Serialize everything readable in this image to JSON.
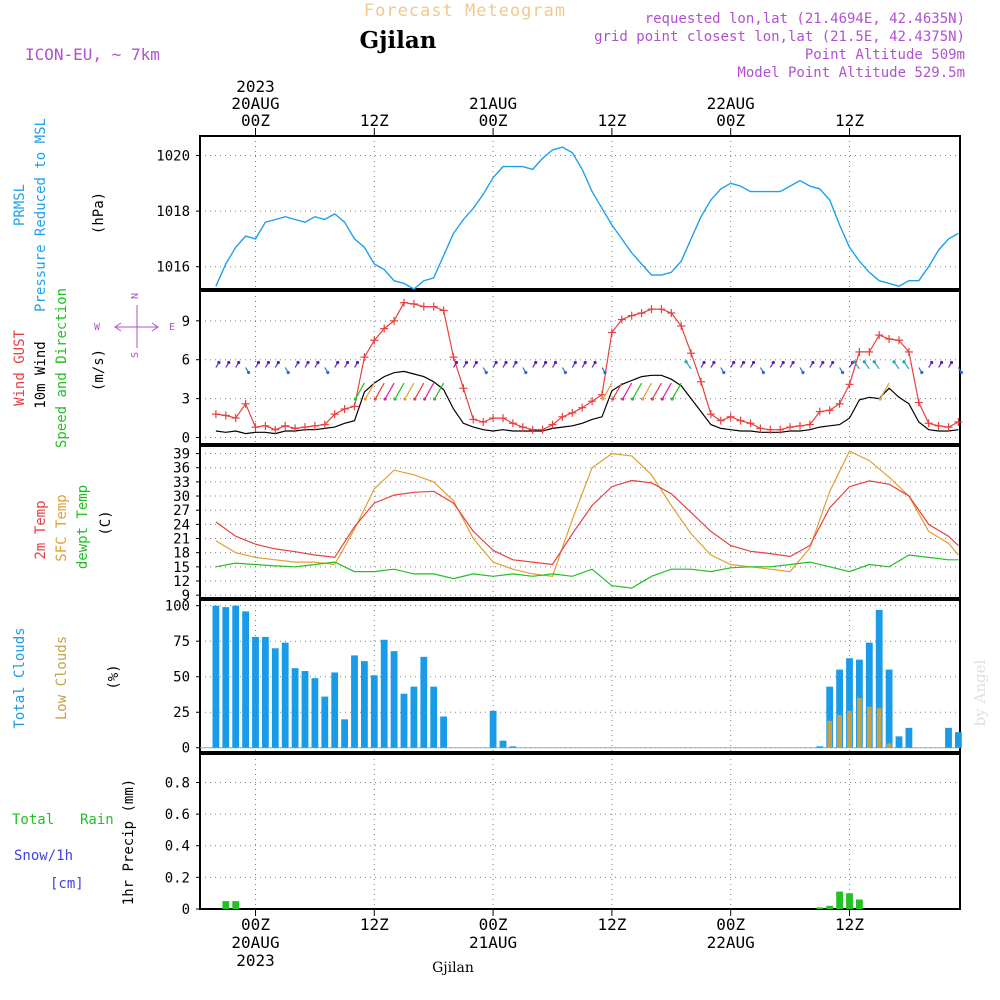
{
  "header": {
    "product_title": "Forecast Meteogram",
    "location": "Gjilan",
    "model": "ICON-EU, ~ 7km",
    "requested": "requested lon,lat (21.4694E, 42.4635N)",
    "gridpoint": "grid point closest lon,lat (21.5E, 42.4375N)",
    "point_alt": "Point Altitude 509m",
    "model_alt": "Model Point Altitude 529.5m",
    "footer_location": "Gjilan",
    "credit": "by Angel"
  },
  "colors": {
    "pressure": "#1ea0f0",
    "gust": "#e84040",
    "wind": "#000000",
    "winddir": "#22c022",
    "temp2m": "#e84040",
    "sfctemp": "#e0a030",
    "dewpt": "#22c022",
    "totalcloud": "#1a9be8",
    "lowcloud": "#c8a048",
    "rain": "#22c022",
    "snow": "#4040e0",
    "purple": "#b050d0",
    "grid": "#808080"
  },
  "time_axis": {
    "top_labels": [
      {
        "hour": 0,
        "lines": [
          "2023",
          "20AUG",
          "00Z"
        ]
      },
      {
        "hour": 12,
        "lines": [
          "12Z"
        ]
      },
      {
        "hour": 24,
        "lines": [
          "21AUG",
          "00Z"
        ]
      },
      {
        "hour": 36,
        "lines": [
          "12Z"
        ]
      },
      {
        "hour": 48,
        "lines": [
          "22AUG",
          "00Z"
        ]
      },
      {
        "hour": 60,
        "lines": [
          "12Z"
        ]
      }
    ],
    "bottom_labels": [
      {
        "hour": 0,
        "lines": [
          "00Z",
          "20AUG",
          "2023"
        ]
      },
      {
        "hour": 12,
        "lines": [
          "12Z"
        ]
      },
      {
        "hour": 24,
        "lines": [
          "00Z",
          "21AUG"
        ]
      },
      {
        "hour": 36,
        "lines": [
          "12Z"
        ]
      },
      {
        "hour": 48,
        "lines": [
          "00Z",
          "22AUG"
        ]
      },
      {
        "hour": 60,
        "lines": [
          "12Z"
        ]
      }
    ]
  },
  "panels": {
    "pressure": {
      "labels": [
        "PRMSL",
        "Pressure Reduced to MSL"
      ],
      "unit": "(hPa)",
      "ticks": [
        "1016",
        "1018",
        "1020"
      ]
    },
    "wind": {
      "labels": [
        "Wind GUST",
        "10m Wind",
        "Speed and Direction"
      ],
      "unit": "(m/s)",
      "ticks": [
        "0",
        "3",
        "6",
        "9"
      ],
      "compass": {
        "n": "N",
        "s": "S",
        "w": "W",
        "e": "E"
      }
    },
    "temp": {
      "labels": [
        "2m Temp",
        "SFC Temp",
        "dewpt Temp"
      ],
      "unit": "(C)",
      "ticks": [
        "9",
        "12",
        "15",
        "18",
        "21",
        "24",
        "27",
        "30",
        "33",
        "36",
        "39"
      ]
    },
    "clouds": {
      "labels": [
        "Total Clouds",
        "Low Clouds"
      ],
      "unit": "(%)",
      "ticks": [
        "0",
        "25",
        "50",
        "75",
        "100"
      ]
    },
    "precip": {
      "labels": [
        "Total",
        "Rain",
        "Snow/1h",
        "[cm]"
      ],
      "unit": "1hr Precip (mm)",
      "ticks": [
        "0",
        "0.2",
        "0.4",
        "0.6",
        "0.8"
      ]
    }
  },
  "chart_data": [
    {
      "type": "line",
      "name": "pressure",
      "ylabel": "PRMSL Pressure Reduced to MSL (hPa)",
      "ylim": [
        1015.2,
        1020.7
      ],
      "x": [
        -4,
        -3,
        -2,
        -1,
        0,
        1,
        2,
        3,
        4,
        5,
        6,
        7,
        8,
        9,
        10,
        11,
        12,
        13,
        14,
        15,
        16,
        17,
        18,
        19,
        20,
        21,
        22,
        23,
        24,
        25,
        26,
        27,
        28,
        29,
        30,
        31,
        32,
        33,
        34,
        35,
        36,
        37,
        38,
        39,
        40,
        41,
        42,
        43,
        44,
        45,
        46,
        47,
        48,
        49,
        50,
        51,
        52,
        53,
        54,
        55,
        56,
        57,
        58,
        59,
        60,
        61,
        62,
        63,
        64,
        65,
        66,
        67,
        68,
        69,
        70,
        71
      ],
      "series": [
        {
          "values": [
            1015.3,
            1016.1,
            1016.7,
            1017.1,
            1017.0,
            1017.6,
            1017.7,
            1017.8,
            1017.7,
            1017.6,
            1017.8,
            1017.7,
            1017.9,
            1017.6,
            1017.0,
            1016.7,
            1016.1,
            1015.9,
            1015.5,
            1015.4,
            1015.2,
            1015.5,
            1015.6,
            1016.4,
            1017.2,
            1017.7,
            1018.1,
            1018.6,
            1019.2,
            1019.6,
            1019.6,
            1019.6,
            1019.5,
            1019.9,
            1020.2,
            1020.3,
            1020.1,
            1019.5,
            1018.7,
            1018.1,
            1017.5,
            1017.0,
            1016.5,
            1016.1,
            1015.7,
            1015.7,
            1015.8,
            1016.2,
            1017.0,
            1017.8,
            1018.4,
            1018.8,
            1019.0,
            1018.9,
            1018.7,
            1018.7,
            1018.7,
            1018.7,
            1018.9,
            1019.1,
            1018.9,
            1018.8,
            1018.4,
            1017.5,
            1016.7,
            1016.2,
            1015.8,
            1015.5,
            1015.4,
            1015.3,
            1015.5,
            1015.5,
            1016.0,
            1016.6,
            1017.0,
            1017.2
          ]
        }
      ]
    },
    {
      "type": "line",
      "name": "wind",
      "ylabel": "(m/s)",
      "ylim": [
        -0.5,
        11.3
      ],
      "x": [
        -4,
        -3,
        -2,
        -1,
        0,
        1,
        2,
        3,
        4,
        5,
        6,
        7,
        8,
        9,
        10,
        11,
        12,
        13,
        14,
        15,
        16,
        17,
        18,
        19,
        20,
        21,
        22,
        23,
        24,
        25,
        26,
        27,
        28,
        29,
        30,
        31,
        32,
        33,
        34,
        35,
        36,
        37,
        38,
        39,
        40,
        41,
        42,
        43,
        44,
        45,
        46,
        47,
        48,
        49,
        50,
        51,
        52,
        53,
        54,
        55,
        56,
        57,
        58,
        59,
        60,
        61,
        62,
        63,
        64,
        65,
        66,
        67,
        68,
        69,
        70,
        71
      ],
      "series": [
        {
          "name": "Wind GUST",
          "values": [
            1.8,
            1.7,
            1.5,
            2.6,
            0.8,
            0.9,
            0.6,
            0.9,
            0.7,
            0.8,
            0.9,
            1.0,
            1.8,
            2.2,
            2.4,
            6.2,
            7.5,
            8.4,
            9.0,
            10.4,
            10.3,
            10.1,
            10.1,
            9.8,
            6.2,
            3.8,
            1.4,
            1.2,
            1.5,
            1.5,
            1.1,
            0.8,
            0.6,
            0.6,
            1.0,
            1.6,
            1.9,
            2.3,
            2.8,
            3.3,
            8.1,
            9.1,
            9.4,
            9.6,
            9.9,
            9.9,
            9.6,
            8.6,
            6.5,
            4.3,
            1.8,
            1.3,
            1.6,
            1.3,
            1.1,
            0.7,
            0.6,
            0.6,
            0.8,
            0.9,
            1.0,
            2.0,
            2.1,
            2.6,
            4.1,
            6.6,
            6.6,
            7.9,
            7.6,
            7.5,
            6.6,
            2.7,
            1.1,
            0.9,
            0.8,
            1.2
          ]
        },
        {
          "name": "10m Wind",
          "values": [
            0.5,
            0.4,
            0.5,
            0.3,
            0.4,
            0.4,
            0.3,
            0.5,
            0.5,
            0.6,
            0.6,
            0.7,
            0.8,
            1.1,
            1.3,
            3.5,
            4.2,
            4.7,
            5.0,
            5.1,
            4.9,
            4.7,
            4.3,
            3.7,
            2.2,
            1.1,
            0.8,
            0.6,
            0.5,
            0.6,
            0.5,
            0.5,
            0.5,
            0.5,
            0.7,
            0.8,
            0.9,
            1.1,
            1.4,
            1.6,
            3.6,
            4.1,
            4.4,
            4.7,
            4.8,
            4.8,
            4.5,
            4.0,
            3.0,
            2.0,
            1.0,
            0.7,
            0.6,
            0.5,
            0.5,
            0.4,
            0.4,
            0.4,
            0.5,
            0.5,
            0.6,
            0.8,
            0.9,
            1.0,
            1.5,
            2.9,
            3.1,
            3.0,
            3.8,
            3.1,
            2.6,
            1.2,
            0.6,
            0.5,
            0.5,
            0.6
          ]
        }
      ]
    },
    {
      "type": "line",
      "name": "temperature",
      "ylabel": "(C)",
      "ylim": [
        8.4,
        40.6
      ],
      "x": [
        -4,
        -2,
        0,
        2,
        4,
        6,
        8,
        10,
        12,
        14,
        16,
        18,
        20,
        22,
        24,
        26,
        28,
        30,
        32,
        34,
        36,
        38,
        40,
        42,
        44,
        46,
        48,
        50,
        52,
        54,
        56,
        58,
        60,
        62,
        64,
        66,
        68,
        70,
        71
      ],
      "series": [
        {
          "name": "2m Temp",
          "values": [
            24.5,
            21.5,
            19.8,
            18.8,
            18.2,
            17.5,
            17.0,
            23.5,
            28.5,
            30.2,
            30.8,
            31.0,
            28.5,
            22.5,
            18.5,
            16.5,
            16.0,
            15.5,
            22.0,
            28.0,
            32.0,
            33.3,
            32.8,
            30.5,
            26.5,
            22.5,
            19.5,
            18.3,
            17.8,
            17.2,
            19.5,
            27.5,
            32.0,
            33.2,
            32.5,
            30.0,
            24.0,
            21.5,
            19.5
          ]
        },
        {
          "name": "SFC Temp",
          "values": [
            20.5,
            18.0,
            17.0,
            16.5,
            16.0,
            16.0,
            15.5,
            23.0,
            31.5,
            35.5,
            34.5,
            33.0,
            29.0,
            21.0,
            16.0,
            14.5,
            13.5,
            13.0,
            25.0,
            36.0,
            39.0,
            38.5,
            34.5,
            28.0,
            22.0,
            17.5,
            15.5,
            15.0,
            14.5,
            14.0,
            19.0,
            31.0,
            39.5,
            37.5,
            34.0,
            30.0,
            22.5,
            20.0,
            17.5
          ]
        },
        {
          "name": "dewpt Temp",
          "values": [
            15.0,
            15.8,
            15.5,
            15.2,
            15.0,
            15.5,
            16.0,
            14.0,
            14.0,
            14.5,
            13.5,
            13.5,
            12.5,
            13.5,
            13.0,
            13.5,
            13.0,
            13.5,
            13.0,
            14.5,
            11.0,
            10.5,
            13.0,
            14.5,
            14.5,
            14.0,
            14.8,
            15.0,
            15.0,
            15.5,
            16.0,
            15.0,
            14.0,
            15.5,
            15.0,
            17.5,
            17.0,
            16.5,
            16.5
          ]
        }
      ]
    },
    {
      "type": "bar",
      "name": "clouds",
      "ylabel": "(%)",
      "ylim": [
        -3,
        104
      ],
      "x": [
        -4,
        -3,
        -2,
        -1,
        0,
        1,
        2,
        3,
        4,
        5,
        6,
        7,
        8,
        9,
        10,
        11,
        12,
        13,
        14,
        15,
        16,
        17,
        18,
        19,
        20,
        21,
        22,
        23,
        24,
        25,
        26,
        27,
        28,
        29,
        30,
        31,
        32,
        33,
        34,
        35,
        36,
        37,
        38,
        39,
        40,
        41,
        42,
        43,
        44,
        45,
        46,
        47,
        48,
        49,
        50,
        51,
        52,
        53,
        54,
        55,
        56,
        57,
        58,
        59,
        60,
        61,
        62,
        63,
        64,
        65,
        66,
        67,
        68,
        69,
        70,
        71
      ],
      "series": [
        {
          "name": "Total Clouds",
          "values": [
            100,
            99,
            100,
            96,
            78,
            78,
            70,
            74,
            56,
            54,
            49,
            36,
            53,
            20,
            65,
            61,
            51,
            76,
            68,
            38,
            43,
            64,
            43,
            22,
            0,
            0,
            0,
            0,
            26,
            5,
            1,
            0,
            0,
            0,
            0,
            0,
            0,
            0,
            0,
            0,
            0,
            0,
            0,
            0,
            0,
            0,
            0,
            0,
            0,
            0,
            0,
            0,
            0,
            0,
            0,
            0,
            0,
            0,
            0,
            0,
            0,
            1,
            43,
            55,
            63,
            62,
            74,
            97,
            55,
            8,
            14,
            0,
            0,
            0,
            14,
            11
          ]
        },
        {
          "name": "Low Clouds",
          "values": [
            0,
            0,
            0,
            0,
            0,
            0,
            0,
            0,
            0,
            0,
            0,
            0,
            0,
            0,
            0,
            0,
            0,
            0,
            0,
            0,
            0,
            0,
            0,
            0,
            0,
            0,
            0,
            0,
            0,
            0,
            0,
            0,
            0,
            0,
            0,
            0,
            0,
            0,
            0,
            0,
            0,
            0,
            0,
            0,
            0,
            0,
            0,
            0,
            0,
            0,
            0,
            0,
            0,
            0,
            0,
            0,
            0,
            0,
            0,
            0,
            0,
            0,
            19,
            23,
            26,
            35,
            29,
            28,
            3,
            0,
            0,
            0,
            0,
            0,
            0,
            0
          ]
        }
      ]
    },
    {
      "type": "bar",
      "name": "precipitation",
      "ylabel": "1hr Precip (mm)",
      "ylim": [
        0,
        0.98
      ],
      "x": [
        -3,
        -2,
        57,
        58,
        59,
        60,
        61
      ],
      "series": [
        {
          "name": "Total Rain",
          "values": [
            0.05,
            0.05,
            0.01,
            0.02,
            0.11,
            0.1,
            0.06
          ]
        }
      ]
    }
  ]
}
